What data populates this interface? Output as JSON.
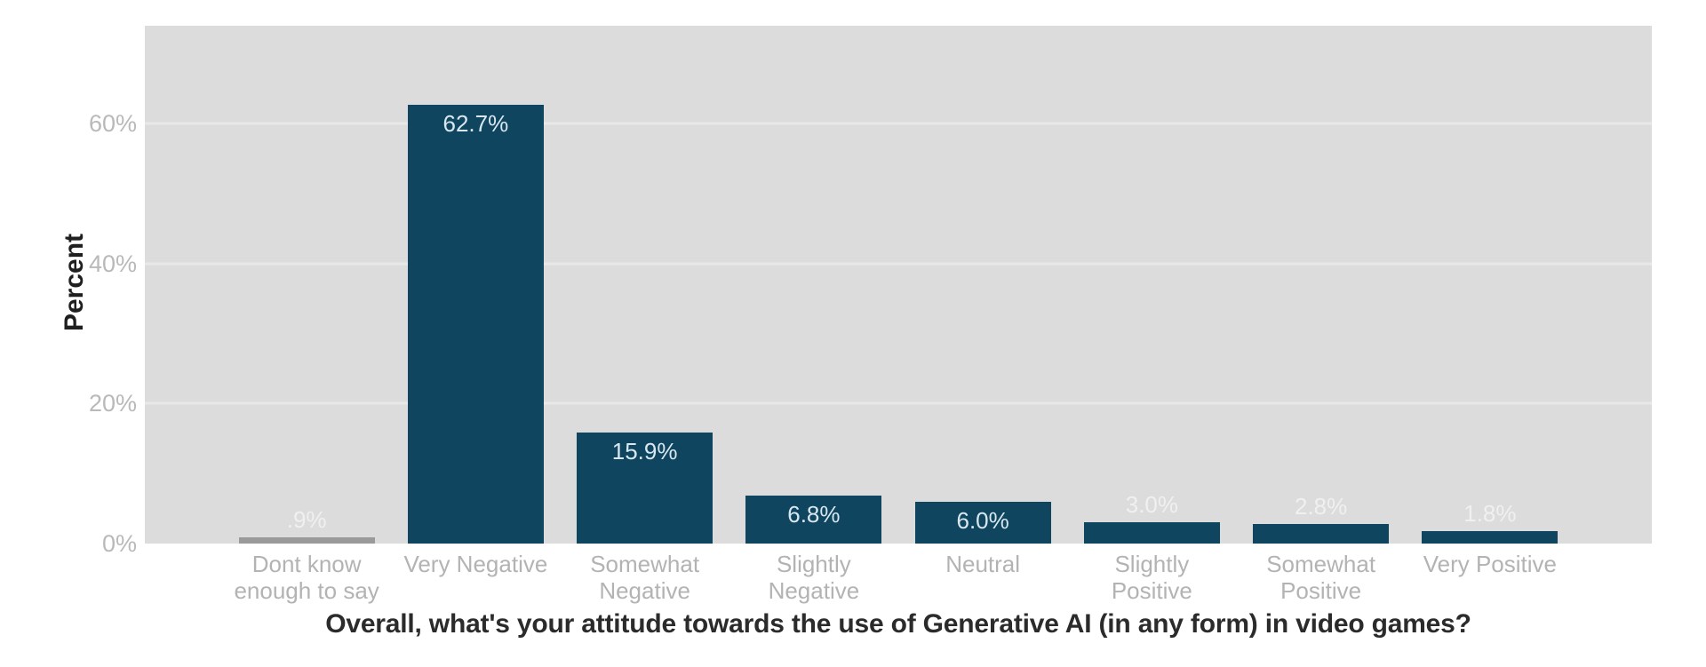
{
  "chart_data": {
    "type": "bar",
    "title": "Overall, what's your attitude towards the use of Generative AI (in any form) in video games?",
    "ylabel": "Percent",
    "categories": [
      "Dont know\nenough to say",
      "Very Negative",
      "Somewhat\nNegative",
      "Slightly\nNegative",
      "Neutral",
      "Slightly\nPositive",
      "Somewhat\nPositive",
      "Very Positive"
    ],
    "values": [
      0.9,
      62.7,
      15.9,
      6.8,
      6.0,
      3.0,
      2.8,
      1.8
    ],
    "value_labels": [
      ".9%",
      "62.7%",
      "15.9%",
      "6.8%",
      "6.0%",
      "3.0%",
      "2.8%",
      "1.8%"
    ],
    "bar_colors": [
      "#9a9a9a",
      "#0f455f",
      "#0f455f",
      "#0f455f",
      "#0f455f",
      "#0f455f",
      "#0f455f",
      "#0f455f"
    ],
    "ytick_labels": [
      "0%",
      "20%",
      "40%",
      "60%"
    ],
    "ytick_values": [
      0,
      20,
      40,
      60
    ],
    "ylim": [
      0,
      74
    ],
    "grid": true,
    "legend_position": "none",
    "plot_background": "#dcdcdc",
    "gridline_color": "#e8e8e8",
    "accent_color": "#0f455f",
    "muted_bar_color": "#9a9a9a"
  }
}
